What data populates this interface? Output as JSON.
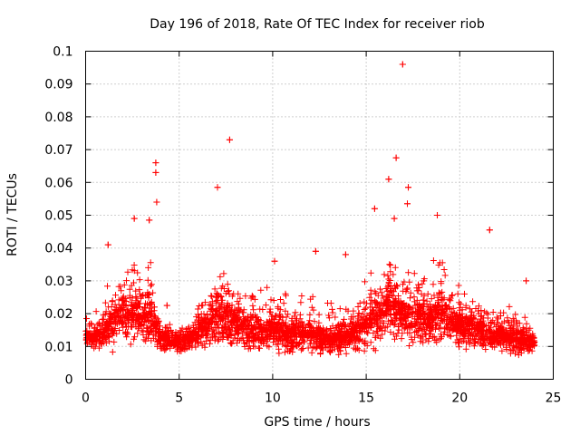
{
  "chart_data": {
    "type": "scatter",
    "title": "Day 196 of 2018, Rate Of TEC Index for receiver riob",
    "xlabel": "GPS time / hours",
    "ylabel": "ROTI / TECUs",
    "xlim": [
      0,
      25
    ],
    "ylim": [
      0,
      0.1
    ],
    "x_ticks": [
      0,
      5,
      10,
      15,
      20,
      25
    ],
    "x_tick_labels": [
      "0",
      "5",
      "10",
      "15",
      "20",
      "25"
    ],
    "y_ticks": [
      0,
      0.01,
      0.02,
      0.03,
      0.04,
      0.05,
      0.06,
      0.07,
      0.08,
      0.09,
      0.1
    ],
    "y_tick_labels": [
      "0",
      "0.01",
      "0.02",
      "0.03",
      "0.04",
      "0.05",
      "0.06",
      "0.07",
      "0.08",
      "0.09",
      "0.1"
    ],
    "grid": true,
    "marker": "+",
    "marker_color": "#ff0000",
    "notable_points": [
      {
        "x": 16.95,
        "y": 0.096
      },
      {
        "x": 7.7,
        "y": 0.073
      },
      {
        "x": 16.6,
        "y": 0.0675
      },
      {
        "x": 3.75,
        "y": 0.066
      },
      {
        "x": 3.75,
        "y": 0.063
      },
      {
        "x": 16.2,
        "y": 0.061
      },
      {
        "x": 7.05,
        "y": 0.0585
      },
      {
        "x": 17.25,
        "y": 0.0585
      },
      {
        "x": 3.8,
        "y": 0.054
      },
      {
        "x": 17.2,
        "y": 0.0535
      },
      {
        "x": 15.45,
        "y": 0.052
      },
      {
        "x": 2.6,
        "y": 0.049
      },
      {
        "x": 16.5,
        "y": 0.049
      },
      {
        "x": 3.4,
        "y": 0.0485
      },
      {
        "x": 18.8,
        "y": 0.05
      },
      {
        "x": 21.6,
        "y": 0.0455
      },
      {
        "x": 1.2,
        "y": 0.041
      },
      {
        "x": 12.3,
        "y": 0.039
      },
      {
        "x": 10.1,
        "y": 0.036
      },
      {
        "x": 13.9,
        "y": 0.038
      },
      {
        "x": 23.55,
        "y": 0.03
      },
      {
        "x": 4.35,
        "y": 0.0225
      },
      {
        "x": 0.05,
        "y": 0.0185
      }
    ],
    "envelope_hours": [
      0,
      0.5,
      1,
      1.5,
      2,
      2.5,
      3,
      3.5,
      4,
      4.5,
      5,
      5.5,
      6,
      6.5,
      7,
      7.5,
      8,
      8.5,
      9,
      9.5,
      10,
      10.5,
      11,
      11.5,
      12,
      12.5,
      13,
      13.5,
      14,
      14.5,
      15,
      15.5,
      16,
      16.5,
      17,
      17.5,
      18,
      18.5,
      19,
      19.5,
      20,
      20.5,
      21,
      21.5,
      22,
      22.5,
      23,
      23.5,
      24
    ],
    "envelope_low": [
      0.01,
      0.007,
      0.006,
      0.006,
      0.007,
      0.007,
      0.008,
      0.008,
      0.007,
      0.008,
      0.007,
      0.007,
      0.007,
      0.007,
      0.007,
      0.007,
      0.006,
      0.006,
      0.006,
      0.006,
      0.006,
      0.006,
      0.006,
      0.006,
      0.006,
      0.006,
      0.006,
      0.006,
      0.006,
      0.006,
      0.007,
      0.007,
      0.008,
      0.008,
      0.008,
      0.008,
      0.008,
      0.008,
      0.008,
      0.008,
      0.007,
      0.007,
      0.007,
      0.007,
      0.006,
      0.006,
      0.006,
      0.006,
      0.006
    ],
    "envelope_high": [
      0.019,
      0.021,
      0.03,
      0.032,
      0.033,
      0.04,
      0.035,
      0.044,
      0.017,
      0.018,
      0.016,
      0.018,
      0.024,
      0.029,
      0.034,
      0.036,
      0.031,
      0.03,
      0.029,
      0.03,
      0.032,
      0.029,
      0.027,
      0.026,
      0.027,
      0.025,
      0.024,
      0.026,
      0.028,
      0.03,
      0.033,
      0.036,
      0.039,
      0.04,
      0.036,
      0.037,
      0.036,
      0.035,
      0.042,
      0.031,
      0.03,
      0.027,
      0.026,
      0.025,
      0.023,
      0.023,
      0.022,
      0.02,
      0.017
    ],
    "envelope_median": [
      0.013,
      0.012,
      0.014,
      0.017,
      0.018,
      0.02,
      0.018,
      0.02,
      0.012,
      0.012,
      0.011,
      0.012,
      0.014,
      0.016,
      0.018,
      0.018,
      0.016,
      0.015,
      0.014,
      0.014,
      0.015,
      0.014,
      0.013,
      0.013,
      0.013,
      0.012,
      0.012,
      0.012,
      0.013,
      0.014,
      0.016,
      0.018,
      0.02,
      0.021,
      0.019,
      0.019,
      0.018,
      0.018,
      0.02,
      0.017,
      0.016,
      0.015,
      0.015,
      0.014,
      0.013,
      0.013,
      0.012,
      0.012,
      0.011
    ]
  }
}
